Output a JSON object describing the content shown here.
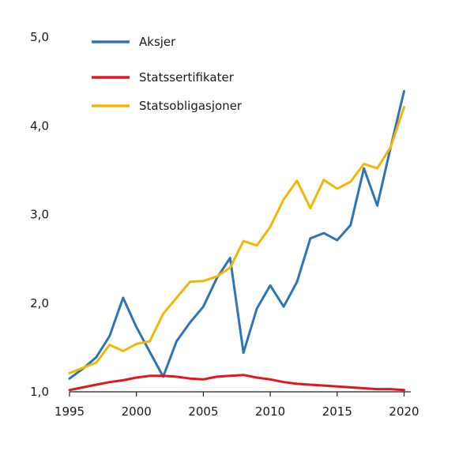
{
  "chart_data": {
    "type": "line",
    "title": "",
    "xlabel": "",
    "ylabel": "",
    "xlim": [
      1995,
      2020.5
    ],
    "ylim": [
      1.0,
      5.0
    ],
    "x_ticks": [
      1995,
      2000,
      2005,
      2010,
      2015,
      2020
    ],
    "x_tick_labels": [
      "1995",
      "2000",
      "2005",
      "2010",
      "2015",
      "2020"
    ],
    "y_ticks": [
      1.0,
      2.0,
      3.0,
      4.0,
      5.0
    ],
    "y_tick_labels": [
      "1,0",
      "2,0",
      "3,0",
      "4,0",
      "5,0"
    ],
    "grid": false,
    "legend_position": "top-left",
    "x": [
      1995,
      1996,
      1997,
      1998,
      1999,
      2000,
      2001,
      2002,
      2003,
      2004,
      2005,
      2006,
      2007,
      2008,
      2009,
      2010,
      2011,
      2012,
      2013,
      2014,
      2015,
      2016,
      2017,
      2018,
      2019,
      2020
    ],
    "series": [
      {
        "name": "Aksjer",
        "color": "#2e75b6",
        "values": [
          1.15,
          1.26,
          1.39,
          1.63,
          2.06,
          1.73,
          1.45,
          1.17,
          1.57,
          1.78,
          1.96,
          2.28,
          2.51,
          1.44,
          1.94,
          2.2,
          1.96,
          2.24,
          2.73,
          2.79,
          2.71,
          2.88,
          3.52,
          3.1,
          3.76,
          4.39
        ]
      },
      {
        "name": "Statssertifikater",
        "color": "#e3161e",
        "values": [
          1.02,
          1.05,
          1.08,
          1.11,
          1.13,
          1.16,
          1.18,
          1.18,
          1.17,
          1.15,
          1.14,
          1.17,
          1.18,
          1.19,
          1.16,
          1.14,
          1.11,
          1.09,
          1.08,
          1.07,
          1.06,
          1.05,
          1.04,
          1.03,
          1.03,
          1.02
        ]
      },
      {
        "name": "Statsobligasjoner",
        "color": "#f2b705",
        "values": [
          1.21,
          1.27,
          1.33,
          1.53,
          1.46,
          1.54,
          1.57,
          1.88,
          2.06,
          2.24,
          2.25,
          2.3,
          2.4,
          2.7,
          2.65,
          2.86,
          3.17,
          3.38,
          3.07,
          3.39,
          3.29,
          3.37,
          3.57,
          3.52,
          3.76,
          4.21
        ]
      }
    ]
  }
}
